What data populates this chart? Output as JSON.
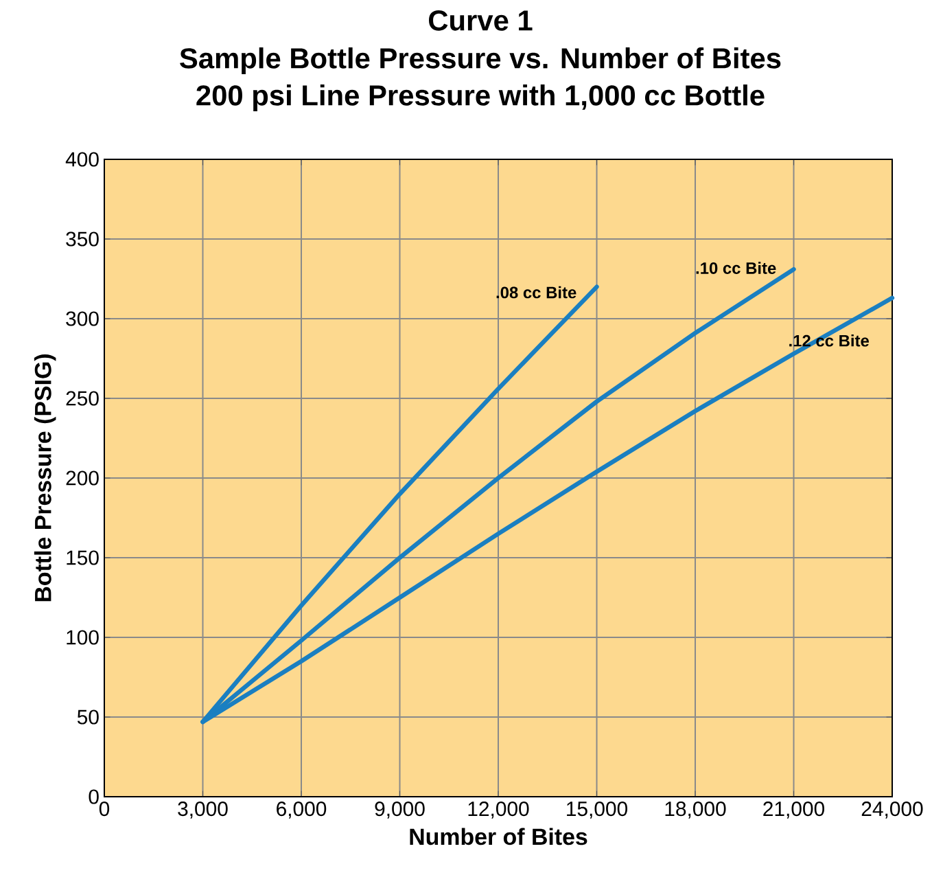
{
  "chart_data": {
    "type": "line",
    "title": "Curve 1",
    "subtitle": "Sample Bottle Pressure vs. Number of Bites",
    "annotations": [
      "200 psi Line Pressure with 1,000 cc Bottle"
    ],
    "xlabel": "Number of Bites",
    "ylabel": "Bottle Pressure (PSIG)",
    "series": [
      {
        "name": ".08 cc Bite",
        "color": "#1a7fc1",
        "x": [
          3000,
          6000,
          9000,
          12000,
          15000
        ],
        "values": [
          47,
          120,
          190,
          256,
          320
        ]
      },
      {
        "name": ".10 cc Bite",
        "color": "#1a7fc1",
        "x": [
          3000,
          6000,
          9000,
          12000,
          15000,
          18000,
          21000
        ],
        "values": [
          47,
          98,
          150,
          200,
          248,
          291,
          331
        ]
      },
      {
        "name": ".12 cc Bite",
        "color": "#1a7fc1",
        "x": [
          3000,
          6000,
          9000,
          12000,
          15000,
          18000,
          21000,
          24000
        ],
        "values": [
          47,
          85,
          125,
          165,
          204,
          242,
          278,
          313
        ]
      }
    ],
    "xlim": [
      0,
      24000
    ],
    "ylim": [
      0,
      400
    ],
    "xticks": [
      0,
      {
        "value": 3000,
        "label": "3,000"
      },
      {
        "value": 6000,
        "label": "6,000"
      },
      {
        "value": 9000,
        "label": "9,000"
      },
      {
        "value": 12000,
        "label": "12,000"
      },
      {
        "value": 15000,
        "label": "15,000"
      },
      {
        "value": 18000,
        "label": "18,000"
      },
      {
        "value": 21000,
        "label": "21,000"
      },
      {
        "value": 24000,
        "label": "24,000"
      }
    ],
    "yticks": [
      0,
      50,
      100,
      150,
      200,
      250,
      300,
      350,
      400
    ],
    "grid": true,
    "marker": "none",
    "line_style": "solid",
    "legend": false
  }
}
